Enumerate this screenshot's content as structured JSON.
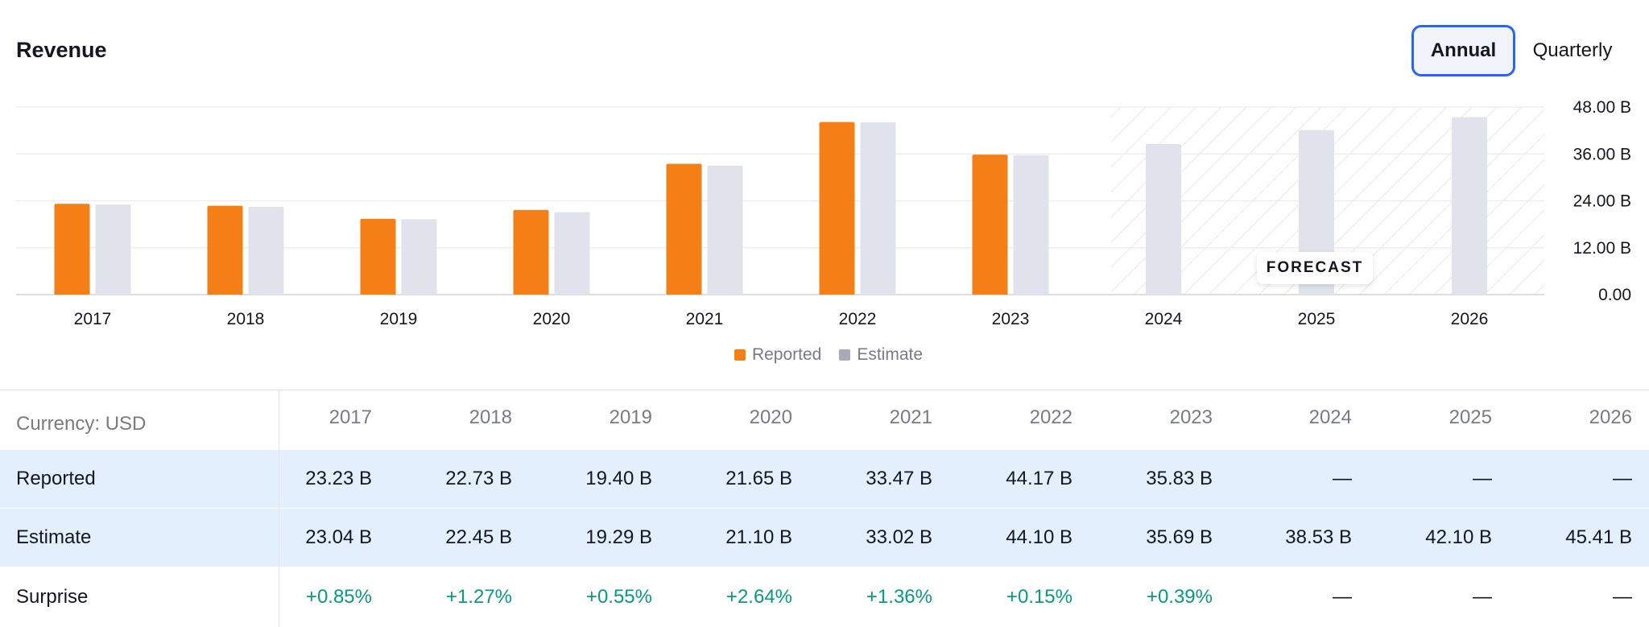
{
  "header": {
    "title": "Revenue",
    "toggle_annual": "Annual",
    "toggle_quarterly": "Quarterly"
  },
  "colors": {
    "reported": "#f57f17",
    "estimate": "#e0e3eb",
    "accent": "#2962ff",
    "positive": "#089981"
  },
  "chart_data": {
    "type": "bar",
    "categories": [
      "2017",
      "2018",
      "2019",
      "2020",
      "2021",
      "2022",
      "2023",
      "2024",
      "2025",
      "2026"
    ],
    "series": [
      {
        "name": "Reported",
        "values": [
          23.23,
          22.73,
          19.4,
          21.65,
          33.47,
          44.17,
          35.83,
          null,
          null,
          null
        ]
      },
      {
        "name": "Estimate",
        "values": [
          23.04,
          22.45,
          19.29,
          21.1,
          33.02,
          44.1,
          35.69,
          38.53,
          42.1,
          45.41
        ]
      }
    ],
    "ylim": [
      0,
      48
    ],
    "yticks": [
      "0.00",
      "12.00 B",
      "24.00 B",
      "36.00 B",
      "48.00 B"
    ],
    "ytick_values": [
      0,
      12,
      24,
      36,
      48
    ],
    "forecast_start": "2024",
    "forecast_label": "FORECAST",
    "grid": true,
    "legend": "bottom-center"
  },
  "legend": {
    "reported": "Reported",
    "estimate": "Estimate"
  },
  "table": {
    "currency_label": "Currency: USD",
    "years": [
      "2017",
      "2018",
      "2019",
      "2020",
      "2021",
      "2022",
      "2023",
      "2024",
      "2025",
      "2026"
    ],
    "rows": [
      {
        "label": "Reported",
        "values": [
          "23.23 B",
          "22.73 B",
          "19.40 B",
          "21.65 B",
          "33.47 B",
          "44.17 B",
          "35.83 B",
          "—",
          "—",
          "—"
        ]
      },
      {
        "label": "Estimate",
        "values": [
          "23.04 B",
          "22.45 B",
          "19.29 B",
          "21.10 B",
          "33.02 B",
          "44.10 B",
          "35.69 B",
          "38.53 B",
          "42.10 B",
          "45.41 B"
        ]
      },
      {
        "label": "Surprise",
        "values": [
          "+0.85%",
          "+1.27%",
          "+0.55%",
          "+2.64%",
          "+1.36%",
          "+0.15%",
          "+0.39%",
          "—",
          "—",
          "—"
        ]
      }
    ]
  }
}
